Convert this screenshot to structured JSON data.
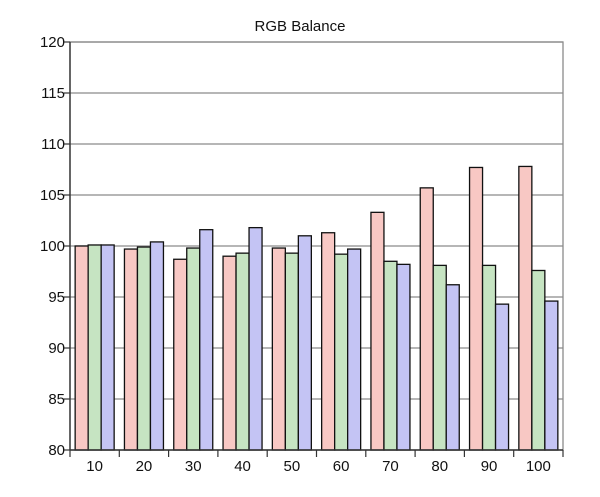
{
  "chart_data": {
    "type": "bar",
    "title": "RGB Balance",
    "xlabel": "",
    "ylabel": "",
    "categories": [
      "10",
      "20",
      "30",
      "40",
      "50",
      "60",
      "70",
      "80",
      "90",
      "100"
    ],
    "ylim": [
      80,
      120
    ],
    "yticks": [
      "80",
      "85",
      "90",
      "95",
      "100",
      "105",
      "110",
      "115",
      "120"
    ],
    "grid": true,
    "legend": "none",
    "series": [
      {
        "color": "#f8c8c4",
        "values": [
          100.0,
          99.7,
          98.7,
          99.0,
          99.8,
          101.3,
          103.3,
          105.7,
          107.7,
          107.8
        ]
      },
      {
        "color": "#c6e4c2",
        "values": [
          100.1,
          99.9,
          99.8,
          99.3,
          99.3,
          99.2,
          98.5,
          98.1,
          98.1,
          97.6
        ]
      },
      {
        "color": "#c4c4f4",
        "values": [
          100.1,
          100.4,
          101.6,
          101.8,
          101.0,
          99.7,
          98.2,
          96.2,
          94.3,
          94.6
        ]
      }
    ]
  }
}
